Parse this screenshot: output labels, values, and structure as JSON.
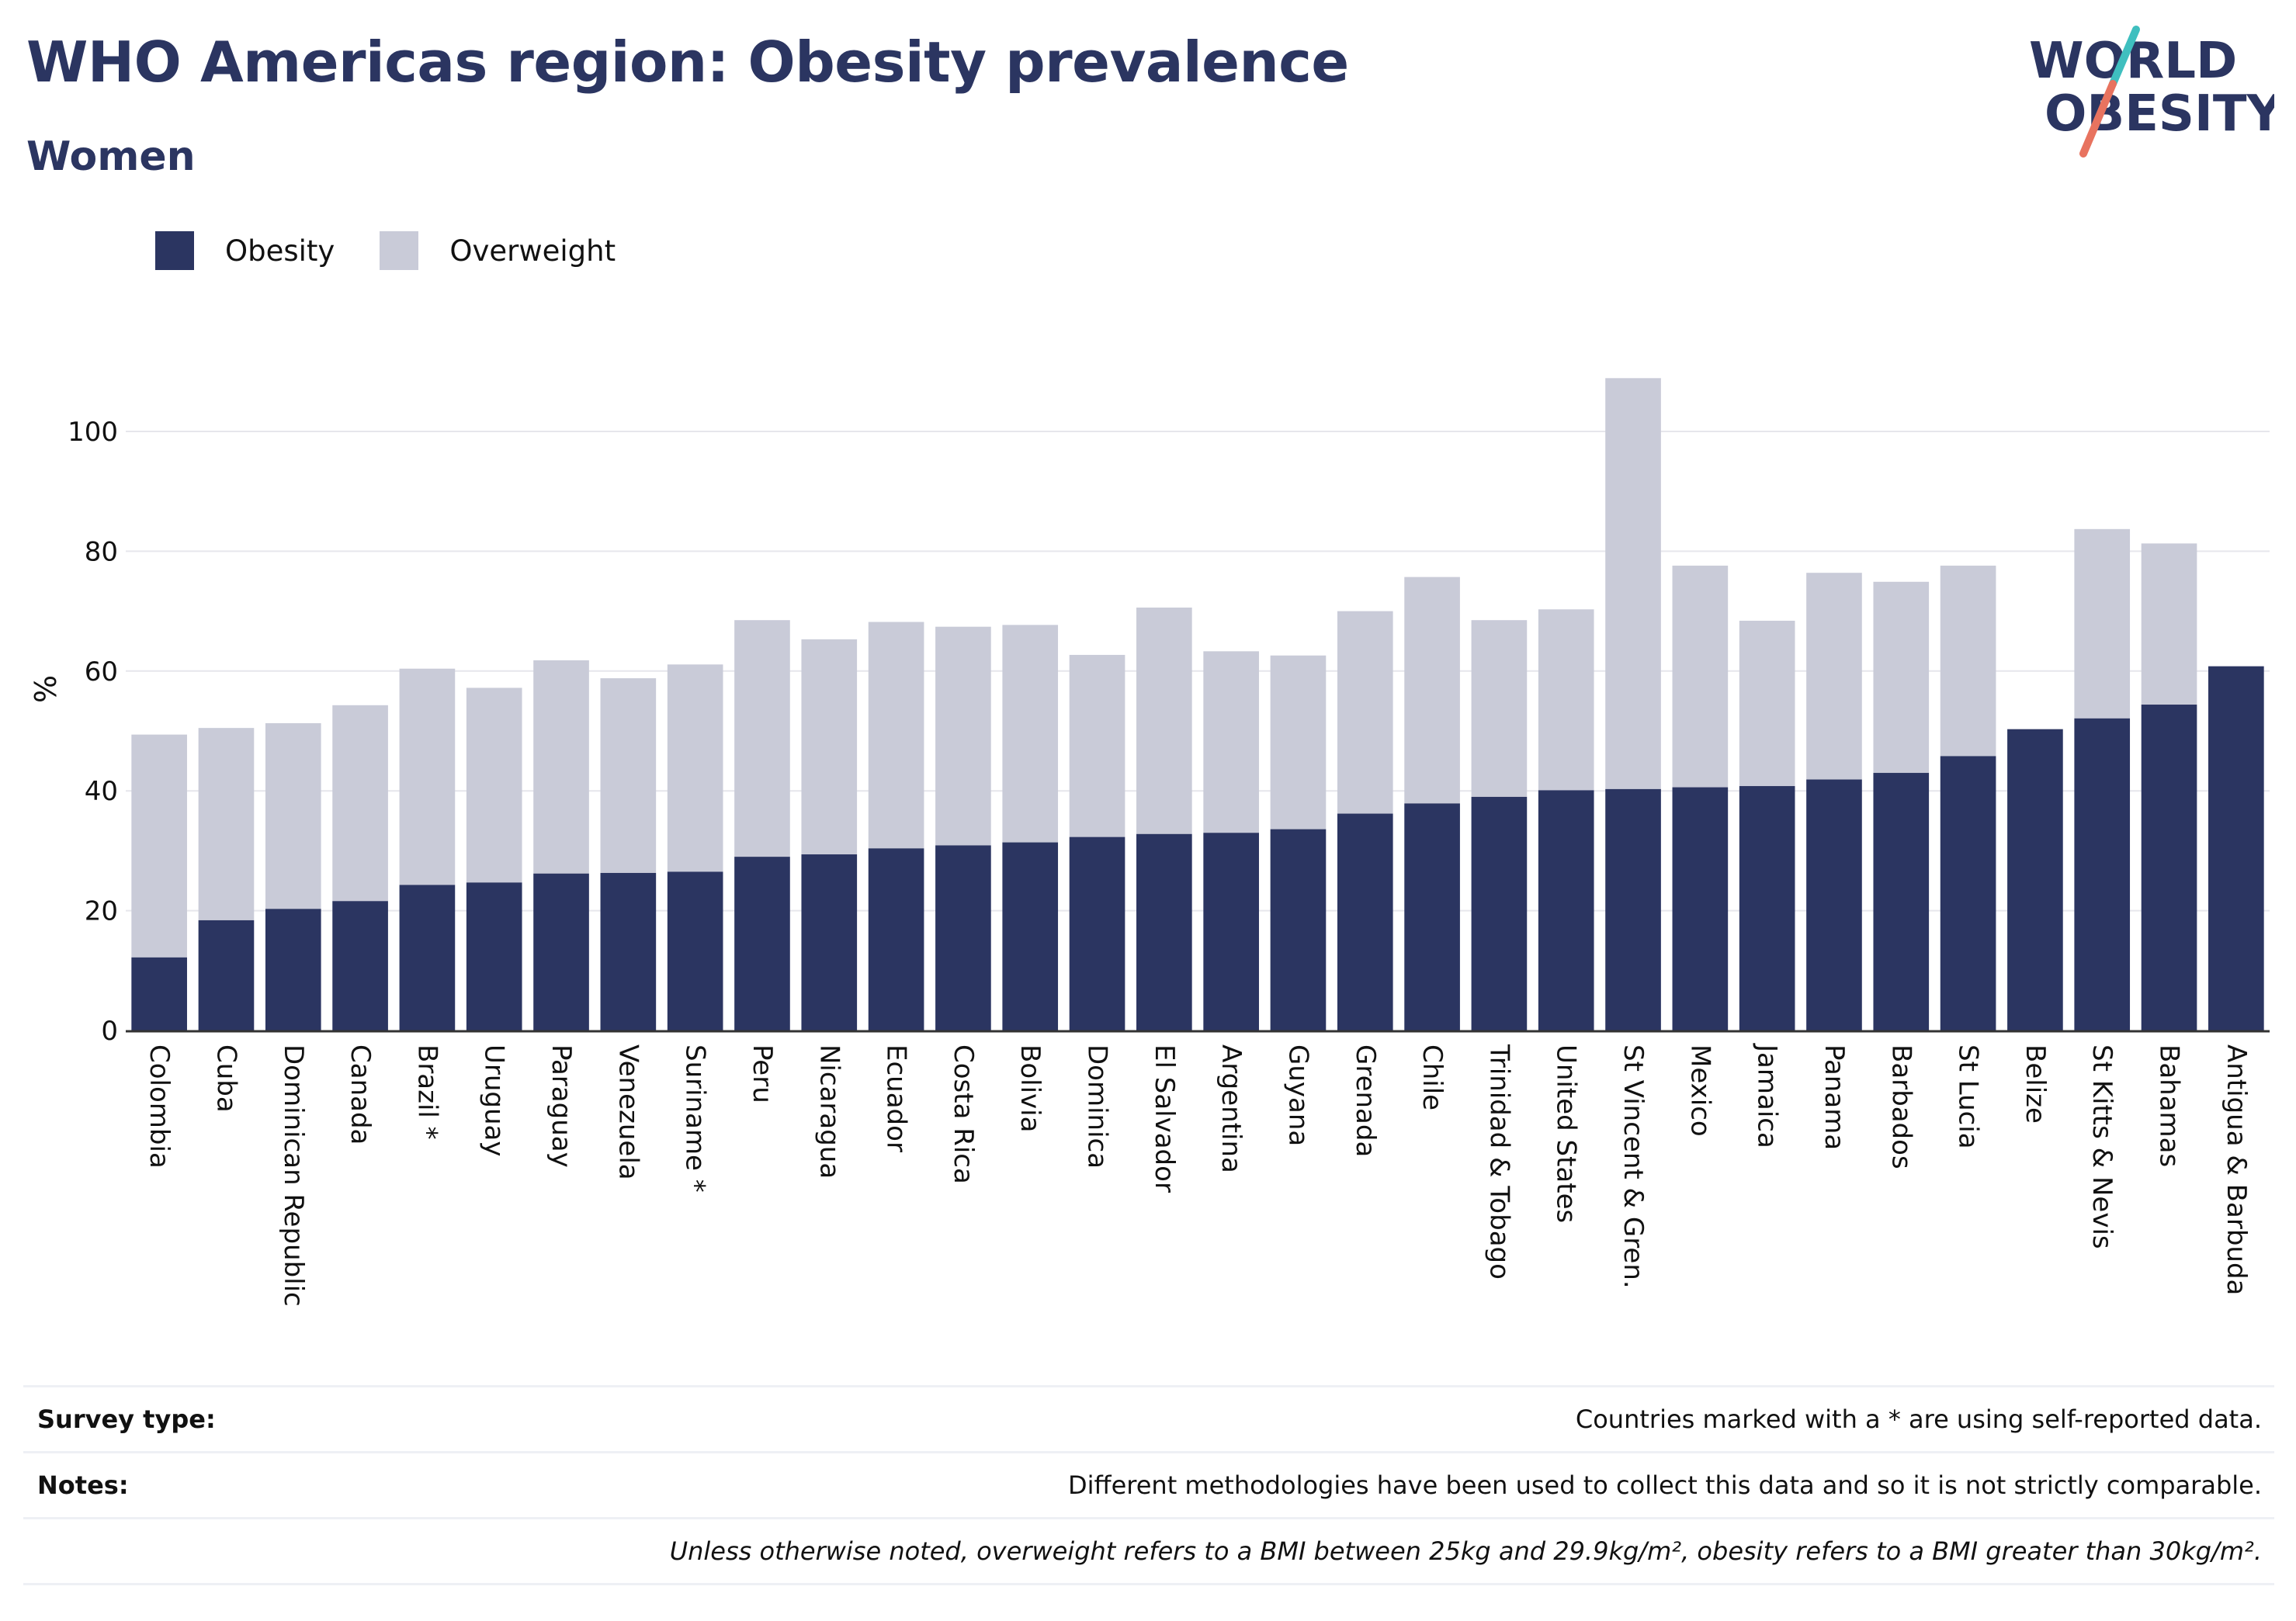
{
  "header": {
    "title": "WHO Americas region: Obesity prevalence",
    "subtitle": "Women",
    "logo_text_line1": "WORLD",
    "logo_text_line2": "OBESITY"
  },
  "colors": {
    "obesity": "#2b3561",
    "overweight": "#c9cbd8",
    "text": "#2b3561",
    "grid": "#e6e6ec",
    "logo_teal": "#3fbfbf",
    "logo_coral": "#e8735f"
  },
  "legend": [
    {
      "label": "Obesity",
      "color": "#2b3561"
    },
    {
      "label": "Overweight",
      "color": "#c9cbd8"
    }
  ],
  "chart_data": {
    "type": "bar",
    "stacked": true,
    "ylabel": "%",
    "xlabel": "",
    "ylim": [
      0,
      112
    ],
    "yticks": [
      0,
      20,
      40,
      60,
      80,
      100
    ],
    "grid": true,
    "legend_position": "top-left",
    "categories": [
      "Colombia",
      "Cuba",
      "Dominican Republic",
      "Canada",
      "Brazil *",
      "Uruguay",
      "Paraguay",
      "Venezuela",
      "Suriname *",
      "Peru",
      "Nicaragua",
      "Ecuador",
      "Costa Rica",
      "Bolivia",
      "Dominica",
      "El Salvador",
      "Argentina",
      "Guyana",
      "Grenada",
      "Chile",
      "Trinidad & Tobago",
      "United States",
      "St Vincent & Gren.",
      "Mexico",
      "Jamaica",
      "Panama",
      "Barbados",
      "St Lucia",
      "Belize",
      "St Kitts & Nevis",
      "Bahamas",
      "Antigua & Barbuda"
    ],
    "series": [
      {
        "name": "Obesity",
        "values": [
          12.2,
          18.4,
          20.3,
          21.6,
          24.3,
          24.7,
          26.2,
          26.3,
          26.5,
          29.0,
          29.4,
          30.4,
          30.9,
          31.4,
          32.3,
          32.8,
          33.0,
          33.6,
          36.2,
          37.9,
          39.0,
          40.1,
          40.3,
          40.6,
          40.8,
          41.9,
          43.0,
          45.8,
          50.3,
          52.1,
          54.4,
          60.8
        ]
      },
      {
        "name": "Overweight",
        "values": [
          37.2,
          32.1,
          31.0,
          32.7,
          36.1,
          32.5,
          35.6,
          32.5,
          34.6,
          39.5,
          35.9,
          37.8,
          36.5,
          36.3,
          30.4,
          37.8,
          30.3,
          29.0,
          33.8,
          37.8,
          29.5,
          30.2,
          68.6,
          37.0,
          27.6,
          34.5,
          31.9,
          31.8,
          0,
          31.6,
          26.9,
          0
        ]
      }
    ]
  },
  "footer": {
    "survey_type_label": "Survey type:",
    "survey_type_value": "Countries marked with a * are using self-reported data.",
    "notes_label": "Notes:",
    "notes_value": "Different methodologies have been used to collect this data and so it is not strictly comparable.",
    "definition": "Unless otherwise noted, overweight refers to a BMI between 25kg and 29.9kg/m², obesity refers to a BMI greater than 30kg/m²."
  }
}
